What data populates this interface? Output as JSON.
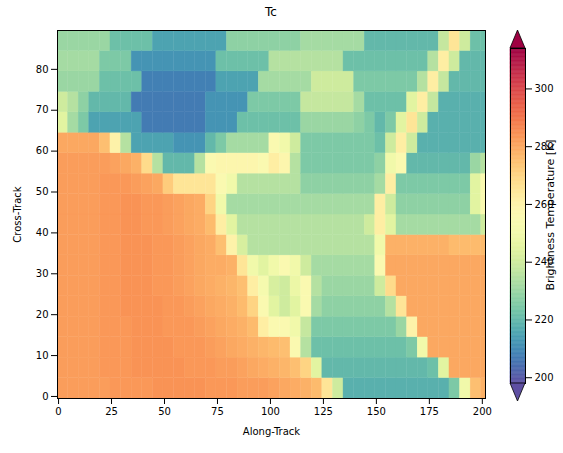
{
  "chart_data": {
    "type": "heatmap",
    "title": "Tc",
    "x_label": "Along-Track",
    "y_label": "Cross-Track",
    "xlim": [
      -0.5,
      201.5
    ],
    "xticks": [
      0,
      25,
      50,
      75,
      100,
      125,
      150,
      175,
      200
    ],
    "ylim": [
      -0.5,
      89.5
    ],
    "yticks": [
      0,
      10,
      20,
      30,
      40,
      50,
      60,
      70,
      80
    ],
    "grid": false,
    "color": "Spectral_r",
    "x_edges": [
      -0.5,
      4.5,
      9.5,
      14.5,
      19.5,
      24.5,
      29.5,
      34.5,
      39.5,
      44.5,
      49.5,
      54.5,
      59.5,
      64.5,
      69.5,
      74.5,
      79.5,
      84.5,
      89.5,
      94.5,
      99.5,
      104.5,
      109.5,
      114.5,
      119.5,
      124.5,
      129.5,
      134.5,
      139.5,
      144.5,
      149.5,
      154.5,
      159.5,
      164.5,
      169.5,
      174.5,
      179.5,
      184.5,
      189.5,
      194.5,
      199.5,
      201.5
    ],
    "y_edges": [
      -0.5,
      4.5,
      9.5,
      14.5,
      19.5,
      24.5,
      29.5,
      34.5,
      39.5,
      44.5,
      49.5,
      54.5,
      59.5,
      64.5,
      69.5,
      74.5,
      79.5,
      84.5,
      89.5
    ],
    "values": [
      [
        282,
        282,
        282,
        282,
        282,
        283,
        283,
        283,
        283,
        284,
        284,
        284,
        284,
        284,
        283,
        283,
        283,
        282,
        282,
        282,
        281,
        280,
        279,
        278,
        276,
        265,
        240,
        218,
        218,
        218,
        218,
        218,
        218,
        218,
        218,
        218,
        218,
        225,
        250,
        275,
        278
      ],
      [
        282,
        282,
        282,
        282,
        283,
        283,
        283,
        284,
        284,
        284,
        284,
        284,
        283,
        283,
        283,
        282,
        282,
        281,
        280,
        279,
        278,
        277,
        275,
        270,
        245,
        220,
        220,
        220,
        220,
        220,
        220,
        220,
        220,
        220,
        220,
        222,
        245,
        280,
        280,
        280,
        280
      ],
      [
        282,
        282,
        282,
        282,
        283,
        283,
        283,
        284,
        284,
        284,
        284,
        283,
        283,
        283,
        282,
        281,
        280,
        279,
        278,
        277,
        276,
        275,
        255,
        235,
        222,
        222,
        222,
        222,
        222,
        222,
        222,
        222,
        222,
        225,
        250,
        280,
        280,
        280,
        280,
        280,
        280
      ],
      [
        282,
        282,
        282,
        282,
        283,
        283,
        283,
        284,
        284,
        284,
        283,
        283,
        283,
        282,
        281,
        280,
        279,
        278,
        276,
        262,
        255,
        255,
        250,
        238,
        225,
        225,
        225,
        225,
        225,
        225,
        225,
        225,
        230,
        260,
        280,
        280,
        280,
        280,
        280,
        280,
        280
      ],
      [
        282,
        282,
        282,
        282,
        283,
        283,
        284,
        284,
        284,
        284,
        283,
        283,
        282,
        281,
        280,
        279,
        278,
        276,
        270,
        255,
        245,
        240,
        245,
        255,
        232,
        228,
        228,
        228,
        228,
        228,
        228,
        235,
        265,
        280,
        280,
        280,
        280,
        280,
        280,
        280,
        280
      ],
      [
        282,
        282,
        282,
        282,
        283,
        283,
        284,
        284,
        284,
        283,
        283,
        282,
        281,
        280,
        279,
        278,
        277,
        275,
        262,
        252,
        242,
        240,
        248,
        255,
        235,
        230,
        230,
        230,
        230,
        230,
        240,
        268,
        280,
        280,
        280,
        280,
        280,
        280,
        280,
        280,
        280
      ],
      [
        282,
        282,
        282,
        282,
        283,
        283,
        284,
        284,
        284,
        283,
        283,
        282,
        281,
        280,
        279,
        279,
        278,
        265,
        250,
        245,
        250,
        255,
        250,
        240,
        232,
        232,
        232,
        232,
        232,
        232,
        255,
        280,
        280,
        280,
        280,
        280,
        280,
        280,
        280,
        280,
        280
      ],
      [
        282,
        282,
        282,
        282,
        283,
        283,
        284,
        284,
        284,
        283,
        283,
        282,
        281,
        280,
        279,
        275,
        260,
        242,
        235,
        235,
        235,
        235,
        235,
        235,
        235,
        235,
        235,
        235,
        235,
        235,
        250,
        278,
        278,
        278,
        278,
        278,
        278,
        276,
        276,
        276,
        276
      ],
      [
        282,
        282,
        282,
        282,
        283,
        283,
        284,
        284,
        283,
        283,
        282,
        281,
        280,
        279,
        276,
        262,
        245,
        235,
        235,
        235,
        235,
        235,
        235,
        235,
        235,
        235,
        235,
        235,
        235,
        240,
        262,
        245,
        232,
        232,
        232,
        232,
        232,
        232,
        232,
        232,
        240
      ],
      [
        282,
        282,
        282,
        282,
        283,
        283,
        284,
        284,
        283,
        283,
        282,
        281,
        280,
        279,
        270,
        250,
        232,
        232,
        232,
        232,
        232,
        232,
        232,
        232,
        232,
        232,
        232,
        232,
        232,
        232,
        262,
        240,
        228,
        228,
        228,
        228,
        228,
        228,
        228,
        245,
        255
      ],
      [
        282,
        282,
        282,
        282,
        283,
        283,
        283,
        282,
        281,
        280,
        272,
        265,
        265,
        265,
        265,
        255,
        250,
        235,
        235,
        235,
        235,
        235,
        235,
        228,
        228,
        228,
        228,
        228,
        228,
        228,
        232,
        262,
        225,
        225,
        225,
        225,
        225,
        225,
        225,
        245,
        255
      ],
      [
        282,
        282,
        282,
        282,
        282,
        281,
        280,
        278,
        268,
        235,
        220,
        220,
        220,
        235,
        255,
        258,
        258,
        258,
        258,
        255,
        262,
        258,
        235,
        225,
        225,
        225,
        225,
        225,
        225,
        225,
        228,
        250,
        255,
        220,
        220,
        220,
        220,
        220,
        220,
        230,
        235
      ],
      [
        280,
        280,
        280,
        280,
        275,
        260,
        235,
        215,
        215,
        215,
        215,
        212,
        212,
        212,
        220,
        225,
        232,
        232,
        232,
        232,
        255,
        250,
        240,
        225,
        225,
        225,
        225,
        225,
        225,
        225,
        222,
        240,
        262,
        240,
        218,
        218,
        218,
        218,
        218,
        218,
        218
      ],
      [
        245,
        232,
        225,
        215,
        215,
        215,
        215,
        215,
        207,
        207,
        207,
        207,
        207,
        207,
        212,
        212,
        212,
        222,
        222,
        222,
        222,
        222,
        222,
        230,
        230,
        230,
        230,
        230,
        228,
        225,
        220,
        225,
        245,
        265,
        240,
        218,
        218,
        218,
        218,
        218,
        218
      ],
      [
        240,
        235,
        228,
        220,
        220,
        220,
        220,
        207,
        207,
        207,
        207,
        207,
        207,
        207,
        212,
        212,
        212,
        212,
        225,
        225,
        225,
        225,
        225,
        238,
        238,
        238,
        238,
        238,
        232,
        222,
        222,
        222,
        222,
        245,
        262,
        238,
        218,
        218,
        218,
        218,
        218
      ],
      [
        230,
        230,
        230,
        230,
        222,
        222,
        222,
        222,
        208,
        208,
        208,
        208,
        208,
        208,
        208,
        215,
        215,
        215,
        215,
        232,
        232,
        232,
        232,
        232,
        240,
        240,
        240,
        240,
        225,
        225,
        225,
        225,
        225,
        225,
        235,
        262,
        238,
        220,
        220,
        220,
        220
      ],
      [
        232,
        232,
        232,
        232,
        225,
        225,
        225,
        212,
        212,
        212,
        212,
        212,
        212,
        212,
        212,
        222,
        222,
        222,
        222,
        222,
        235,
        235,
        235,
        235,
        235,
        235,
        235,
        222,
        222,
        222,
        222,
        222,
        222,
        222,
        222,
        235,
        262,
        240,
        220,
        220,
        220
      ],
      [
        230,
        230,
        230,
        230,
        230,
        222,
        222,
        222,
        222,
        215,
        215,
        215,
        215,
        215,
        215,
        215,
        228,
        228,
        228,
        228,
        228,
        228,
        228,
        232,
        232,
        232,
        232,
        232,
        232,
        220,
        220,
        220,
        220,
        220,
        220,
        220,
        238,
        265,
        240,
        222,
        222
      ]
    ],
    "colorbar": {
      "label": "Brightness Temperature [K]",
      "range": [
        198,
        314
      ],
      "ticks": [
        200,
        220,
        240,
        260,
        280,
        300
      ]
    }
  }
}
